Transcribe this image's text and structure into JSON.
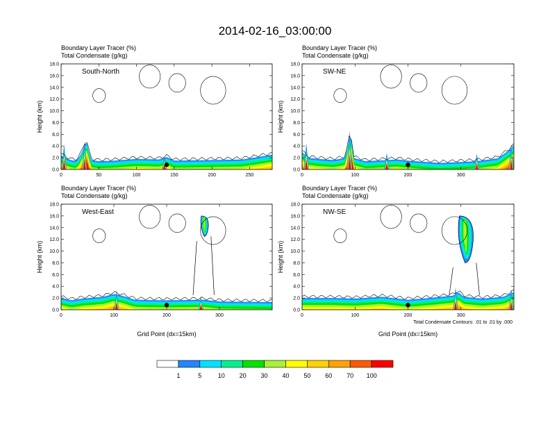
{
  "figure_title": "2014-02-16_03:00:00",
  "panel_field_1": "Boundary Layer Tracer   (%)",
  "panel_field_2": "Total Condensate   (g/kg)",
  "chart_data": [
    {
      "type": "contour",
      "panel": "South-North",
      "ylabel": "Height (km)",
      "xlabel": "",
      "xlim": [
        0,
        280
      ],
      "ylim": [
        0,
        18
      ],
      "xticks": [
        0,
        50,
        100,
        150,
        200,
        250
      ],
      "yticks": [
        "0.0",
        "2.0",
        "4.0",
        "6.0",
        "8.0",
        "10.0",
        "12.0",
        "14.0",
        "16.0",
        "18.0"
      ],
      "filled_layer": {
        "base_top_km": [
          [
            0,
            2.4
          ],
          [
            10,
            1.7
          ],
          [
            20,
            1.4
          ],
          [
            26,
            2.5
          ],
          [
            30,
            3.8
          ],
          [
            33,
            5.0
          ],
          [
            36,
            3.5
          ],
          [
            40,
            1.6
          ],
          [
            50,
            1.4
          ],
          [
            70,
            1.5
          ],
          [
            100,
            1.8
          ],
          [
            130,
            1.7
          ],
          [
            140,
            2.1
          ],
          [
            150,
            1.5
          ],
          [
            200,
            1.6
          ],
          [
            240,
            1.7
          ],
          [
            260,
            2.1
          ],
          [
            280,
            2.5
          ]
        ],
        "blue_spikes": [
          [
            4,
            4.3
          ],
          [
            31,
            4.8
          ],
          [
            137,
            2.3
          ]
        ]
      },
      "marker": {
        "x": 140,
        "y": 0.8
      }
    },
    {
      "type": "contour",
      "panel": "SW-NE",
      "ylabel": "Height (km)",
      "xlabel": "",
      "xlim": [
        0,
        400
      ],
      "ylim": [
        0,
        18
      ],
      "xticks": [
        0,
        100,
        200,
        300
      ],
      "yticks": [
        "0.0",
        "2.0",
        "4.0",
        "6.0",
        "8.0",
        "10.0",
        "12.0",
        "14.0",
        "16.0",
        "18.0"
      ],
      "filled_layer": {
        "base_top_km": [
          [
            0,
            3.0
          ],
          [
            10,
            2.0
          ],
          [
            30,
            1.8
          ],
          [
            60,
            1.6
          ],
          [
            82,
            2.0
          ],
          [
            88,
            5.0
          ],
          [
            92,
            6.5
          ],
          [
            96,
            2.0
          ],
          [
            120,
            1.4
          ],
          [
            180,
            1.7
          ],
          [
            200,
            1.5
          ],
          [
            260,
            1.1
          ],
          [
            330,
            1.4
          ],
          [
            370,
            1.9
          ],
          [
            390,
            3.2
          ],
          [
            400,
            4.0
          ]
        ],
        "blue_spikes": [
          [
            8,
            4.5
          ],
          [
            90,
            6.6
          ],
          [
            160,
            2.8
          ],
          [
            330,
            2.7
          ],
          [
            395,
            4.2
          ]
        ]
      },
      "marker": {
        "x": 200,
        "y": 0.8
      }
    },
    {
      "type": "contour",
      "panel": "West-East",
      "ylabel": "Height (km)",
      "xlabel": "Grid Point (dx=15km)",
      "xlim": [
        0,
        400
      ],
      "ylim": [
        0,
        18
      ],
      "xticks": [
        0,
        100,
        200,
        300
      ],
      "yticks": [
        "0.0",
        "2.0",
        "4.0",
        "6.0",
        "8.0",
        "10.0",
        "12.0",
        "14.0",
        "16.0",
        "18.0"
      ],
      "filled_layer": {
        "base_top_km": [
          [
            0,
            2.0
          ],
          [
            20,
            1.6
          ],
          [
            40,
            1.9
          ],
          [
            80,
            2.2
          ],
          [
            100,
            2.7
          ],
          [
            115,
            2.4
          ],
          [
            140,
            1.7
          ],
          [
            200,
            1.6
          ],
          [
            270,
            1.7
          ],
          [
            300,
            1.4
          ],
          [
            400,
            1.3
          ]
        ],
        "blue_spikes": [
          [
            105,
            3.2
          ],
          [
            265,
            2.3
          ]
        ]
      },
      "upper_feature": {
        "x": [
          262,
          280
        ],
        "y": [
          12.5,
          16.0
        ]
      },
      "marker": {
        "x": 200,
        "y": 0.8
      }
    },
    {
      "type": "contour",
      "panel": "NW-SE",
      "ylabel": "Height (km)",
      "xlabel": "Grid Point (dx=15km)",
      "xlim": [
        0,
        400
      ],
      "ylim": [
        0,
        18
      ],
      "xticks": [
        0,
        100,
        200,
        300
      ],
      "yticks": [
        "0.0",
        "2.0",
        "4.0",
        "6.0",
        "8.0",
        "10.0",
        "12.0",
        "14.0",
        "16.0",
        "18.0"
      ],
      "filled_layer": {
        "base_top_km": [
          [
            0,
            2.0
          ],
          [
            60,
            2.0
          ],
          [
            100,
            1.9
          ],
          [
            150,
            2.2
          ],
          [
            200,
            1.7
          ],
          [
            240,
            2.0
          ],
          [
            285,
            2.4
          ],
          [
            295,
            3.0
          ],
          [
            305,
            2.2
          ],
          [
            340,
            1.9
          ],
          [
            380,
            2.2
          ],
          [
            400,
            3.0
          ]
        ],
        "blue_spikes": [
          [
            290,
            3.8
          ],
          [
            395,
            3.5
          ]
        ]
      },
      "upper_feature": {
        "x": [
          290,
          325
        ],
        "y": [
          8.0,
          16.0
        ]
      },
      "marker": {
        "x": 200,
        "y": 0.8
      },
      "annotation": "Total Condensate Contours: .01 to .01 by .000"
    }
  ],
  "colorbar": {
    "labels": [
      "1",
      "5",
      "10",
      "20",
      "30",
      "40",
      "50",
      "60",
      "70",
      "100"
    ],
    "colors": [
      "#ffffff",
      "#2585ff",
      "#00e2ff",
      "#00f18c",
      "#00e400",
      "#a8f135",
      "#ffff00",
      "#ffd200",
      "#ffa300",
      "#ff5a00",
      "#ff0000"
    ]
  }
}
